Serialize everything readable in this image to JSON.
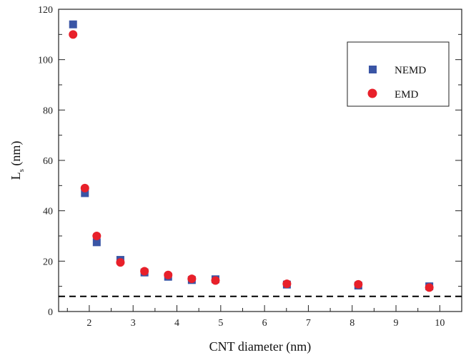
{
  "chart_data": {
    "type": "scatter",
    "xlabel": "CNT diameter (nm)",
    "ylabel_main": "L",
    "ylabel_sub": "s",
    "ylabel_unit": " (nm)",
    "xlim": [
      1.3,
      10.5
    ],
    "ylim": [
      0,
      120
    ],
    "x_ticks": [
      "2",
      "3",
      "4",
      "5",
      "6",
      "7",
      "8",
      "9",
      "10"
    ],
    "y_ticks": [
      "0",
      "20",
      "40",
      "60",
      "80",
      "100",
      "120"
    ],
    "grid": false,
    "legend_position": "top-right",
    "series": [
      {
        "name": "NEMD",
        "marker": "square",
        "color": "#3a55a5",
        "points": [
          [
            1.63,
            114
          ],
          [
            1.9,
            47
          ],
          [
            2.17,
            27.5
          ],
          [
            2.71,
            20.5
          ],
          [
            3.26,
            15.5
          ],
          [
            3.8,
            13.8
          ],
          [
            4.34,
            12.5
          ],
          [
            4.88,
            12.8
          ],
          [
            6.51,
            10.7
          ],
          [
            8.14,
            10.3
          ],
          [
            9.76,
            10
          ]
        ]
      },
      {
        "name": "EMD",
        "marker": "circle",
        "color": "#e8202a",
        "points": [
          [
            1.63,
            110
          ],
          [
            1.9,
            49
          ],
          [
            2.17,
            30
          ],
          [
            2.71,
            19.5
          ],
          [
            3.26,
            16
          ],
          [
            3.8,
            14.5
          ],
          [
            4.34,
            13
          ],
          [
            4.88,
            12.3
          ],
          [
            6.51,
            11
          ],
          [
            8.14,
            10.8
          ],
          [
            9.76,
            9.5
          ]
        ]
      }
    ],
    "reference_line": {
      "y": 6,
      "style": "dashed",
      "color": "#000000"
    }
  }
}
